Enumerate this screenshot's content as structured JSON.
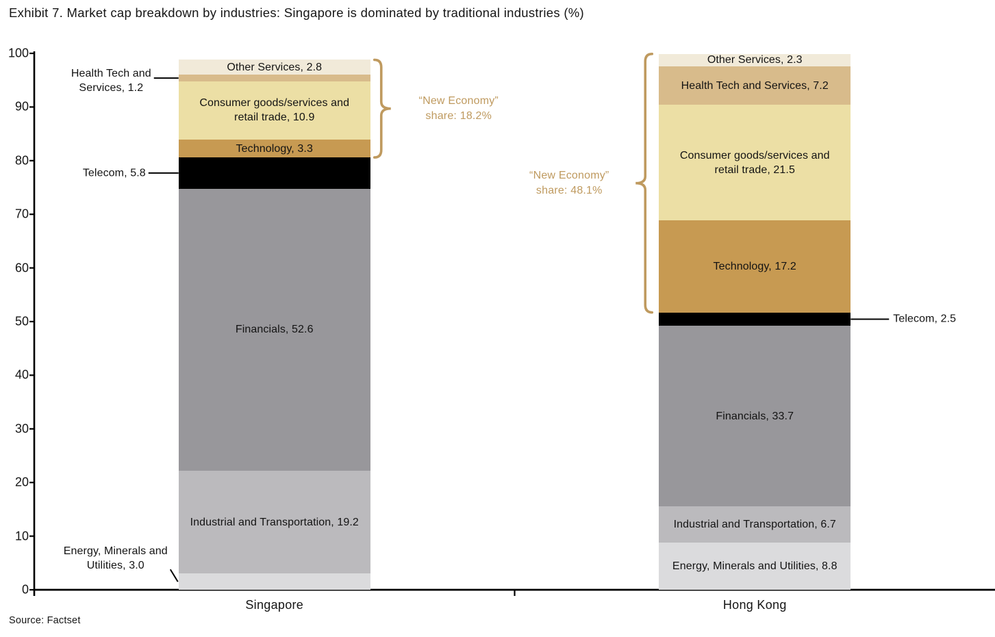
{
  "title": "Exhibit 7. Market cap breakdown by industries: Singapore is dominated by traditional industries (%)",
  "source": "Source: Factset",
  "accent_color": "#bf9a5f",
  "text_color": "#161616",
  "chart_data": {
    "type": "bar",
    "stacked": true,
    "grid": false,
    "legend": "none",
    "categories": [
      "Singapore",
      "Hong Kong"
    ],
    "xlabel": "",
    "ylabel": "",
    "ylim": [
      0,
      100
    ],
    "yticks": [
      0,
      10,
      20,
      30,
      40,
      50,
      60,
      70,
      80,
      90,
      100
    ],
    "series": [
      {
        "name": "Energy, Minerals and Utilities",
        "values": [
          3.0,
          8.8
        ],
        "color": "#dbdbdd",
        "labels": [
          {
            "pos": "left",
            "lines": [
              "Energy, Minerals and",
              "Utilities, 3.0"
            ],
            "gap": 16,
            "dy": -34
          },
          {
            "pos": "inside",
            "lines": [
              "Energy, Minerals and Utilities, 8.8"
            ]
          }
        ]
      },
      {
        "name": "Industrial and Transportation",
        "values": [
          19.2,
          6.7
        ],
        "color": "#bbbabd",
        "labels": [
          {
            "pos": "inside",
            "lines": [
              "Industrial and Transportation, 19.2"
            ]
          },
          {
            "pos": "inside",
            "lines": [
              "Industrial and Transportation, 6.7"
            ]
          }
        ]
      },
      {
        "name": "Financials",
        "values": [
          52.6,
          33.7
        ],
        "color": "#98979b",
        "labels": [
          {
            "pos": "inside",
            "lines": [
              "Financials, 52.6"
            ]
          },
          {
            "pos": "inside",
            "lines": [
              "Financials, 33.7"
            ]
          }
        ]
      },
      {
        "name": "Telecom",
        "values": [
          5.8,
          2.5
        ],
        "color": "#000000",
        "labels": [
          {
            "pos": "left",
            "lines": [
              "Telecom, 5.8"
            ],
            "gap": 48,
            "dy": 0
          },
          {
            "pos": "right",
            "lines": [
              "Telecom, 2.5"
            ],
            "gap": 62,
            "dy": 0
          }
        ]
      },
      {
        "name": "Technology",
        "values": [
          3.3,
          17.2
        ],
        "color": "#c79a52",
        "labels": [
          {
            "pos": "inside",
            "lines": [
              "Technology, 3.3"
            ]
          },
          {
            "pos": "inside",
            "lines": [
              "Technology, 17.2"
            ]
          }
        ]
      },
      {
        "name": "Consumer goods/services and retail trade",
        "values": [
          10.9,
          21.5
        ],
        "color": "#ecdfa5",
        "labels": [
          {
            "pos": "inside",
            "lines": [
              "Consumer goods/services and",
              "retail trade, 10.9"
            ]
          },
          {
            "pos": "inside",
            "lines": [
              "Consumer goods/services and",
              "retail trade, 21.5"
            ]
          }
        ]
      },
      {
        "name": "Health Tech and Services",
        "values": [
          1.2,
          7.2
        ],
        "color": "#d8bb8b",
        "labels": [
          {
            "pos": "left",
            "lines": [
              "Health Tech and",
              "Services, 1.2"
            ],
            "gap": 40,
            "dy": 4
          },
          {
            "pos": "inside",
            "lines": [
              "Health Tech and Services, 7.2"
            ]
          }
        ]
      },
      {
        "name": "Other Services",
        "values": [
          2.8,
          2.3
        ],
        "color": "#f1ead9",
        "labels": [
          {
            "pos": "inside",
            "lines": [
              "Other Services, 2.8"
            ]
          },
          {
            "pos": "inside",
            "lines": [
              "Other Services, 2.3"
            ]
          }
        ]
      }
    ],
    "annotations": [
      {
        "category_index": 0,
        "side": "right",
        "covers_top_n": 4,
        "share": 18.2,
        "lines": [
          "“New Economy”",
          "share: 18.2%"
        ]
      },
      {
        "category_index": 1,
        "side": "left",
        "covers_top_n": 4,
        "share": 48.1,
        "lines": [
          "“New Economy”",
          "share: 48.1%"
        ]
      }
    ]
  }
}
